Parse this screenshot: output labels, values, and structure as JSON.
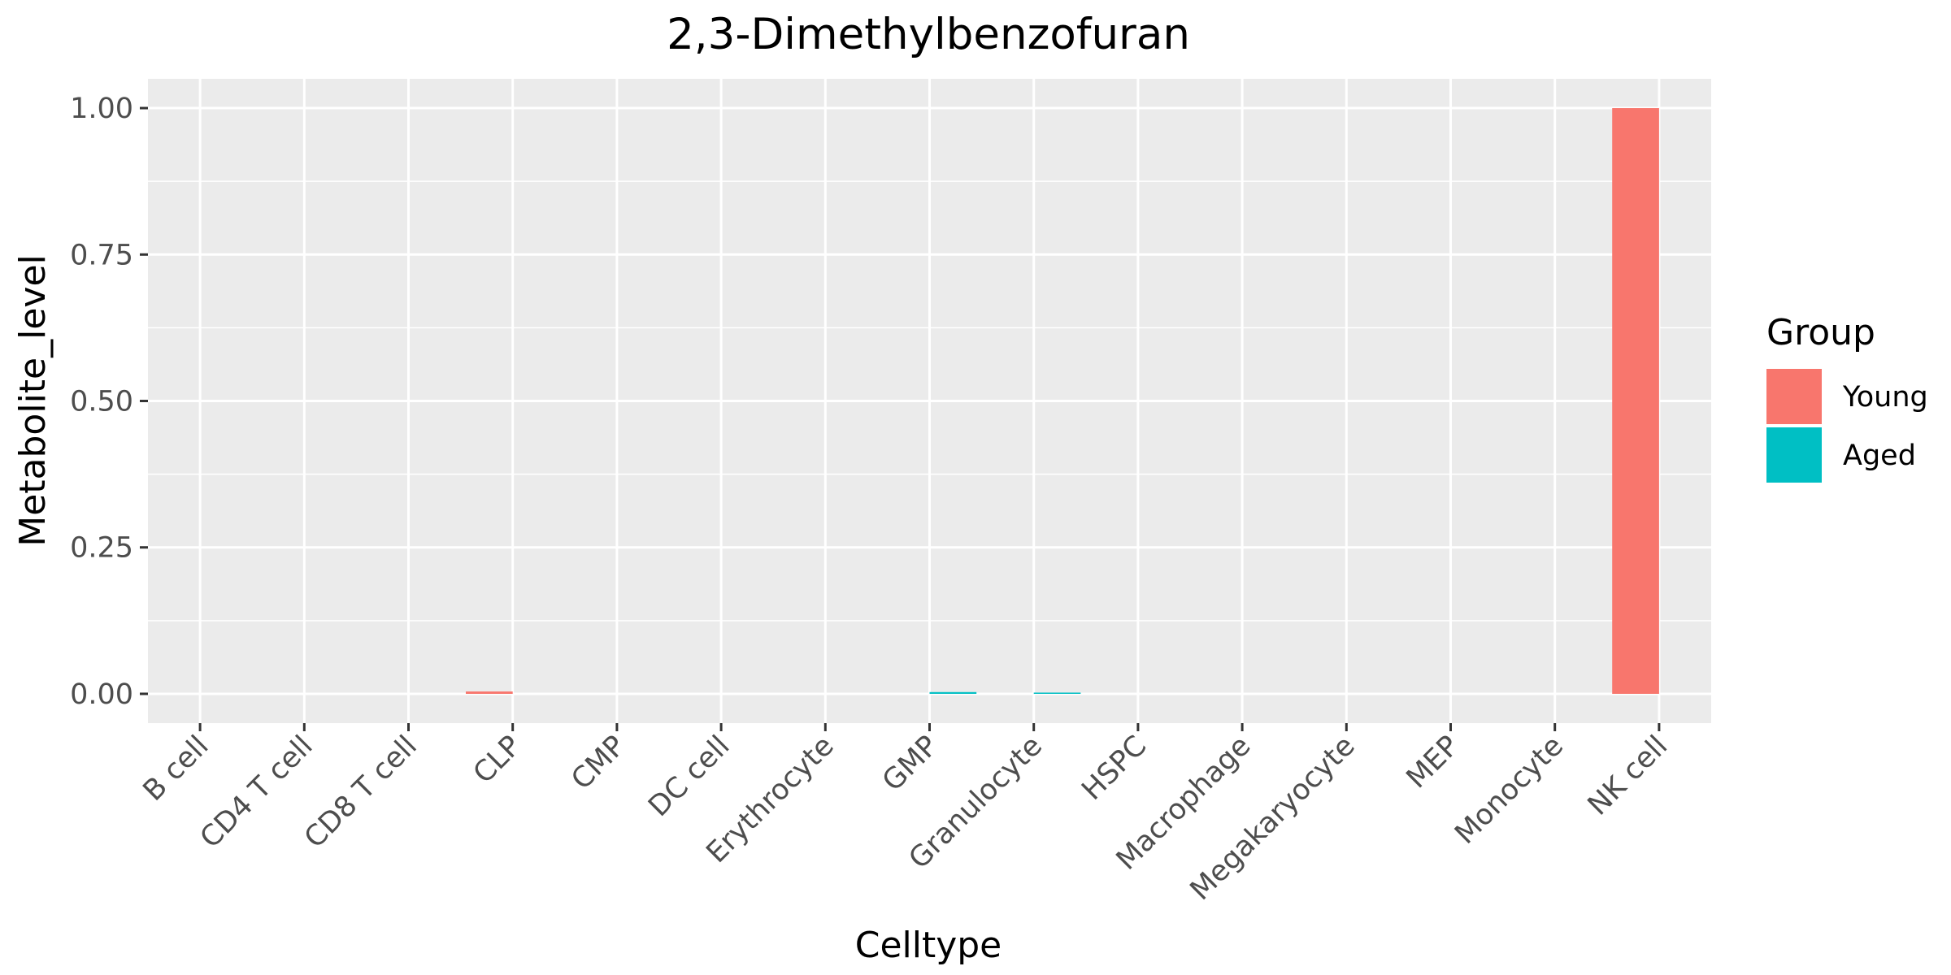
{
  "chart_data": {
    "type": "bar",
    "title": "2,3-Dimethylbenzofuran",
    "xlabel": "Celltype",
    "ylabel": "Metabolite_level",
    "categories": [
      "B cell",
      "CD4 T cell",
      "CD8 T cell",
      "CLP",
      "CMP",
      "DC cell",
      "Erythrocyte",
      "GMP",
      "Granulocyte",
      "HSPC",
      "Macrophage",
      "Megakaryocyte",
      "MEP",
      "Monocyte",
      "NK cell"
    ],
    "series": [
      {
        "name": "Young",
        "color": "#F8766D",
        "values": [
          0,
          0,
          0,
          0.004,
          0,
          0,
          0,
          0,
          0,
          0,
          0,
          0,
          0,
          0,
          1.0
        ]
      },
      {
        "name": "Aged",
        "color": "#00BFC4",
        "values": [
          0,
          0,
          0,
          0,
          0,
          0,
          0,
          0.003,
          0.002,
          0,
          0,
          0,
          0,
          0,
          0
        ]
      }
    ],
    "ylim": [
      -0.05,
      1.05
    ],
    "yticks": [
      0,
      0.25,
      0.5,
      0.75,
      1
    ],
    "ytick_labels": [
      "0.00",
      "0.25",
      "0.50",
      "0.75",
      "1.00"
    ],
    "grid": true,
    "legend": {
      "title": "Group",
      "position": "right",
      "entries": [
        "Young",
        "Aged"
      ]
    },
    "panel_background": "#EBEBEB",
    "grid_color": "#FFFFFF"
  }
}
